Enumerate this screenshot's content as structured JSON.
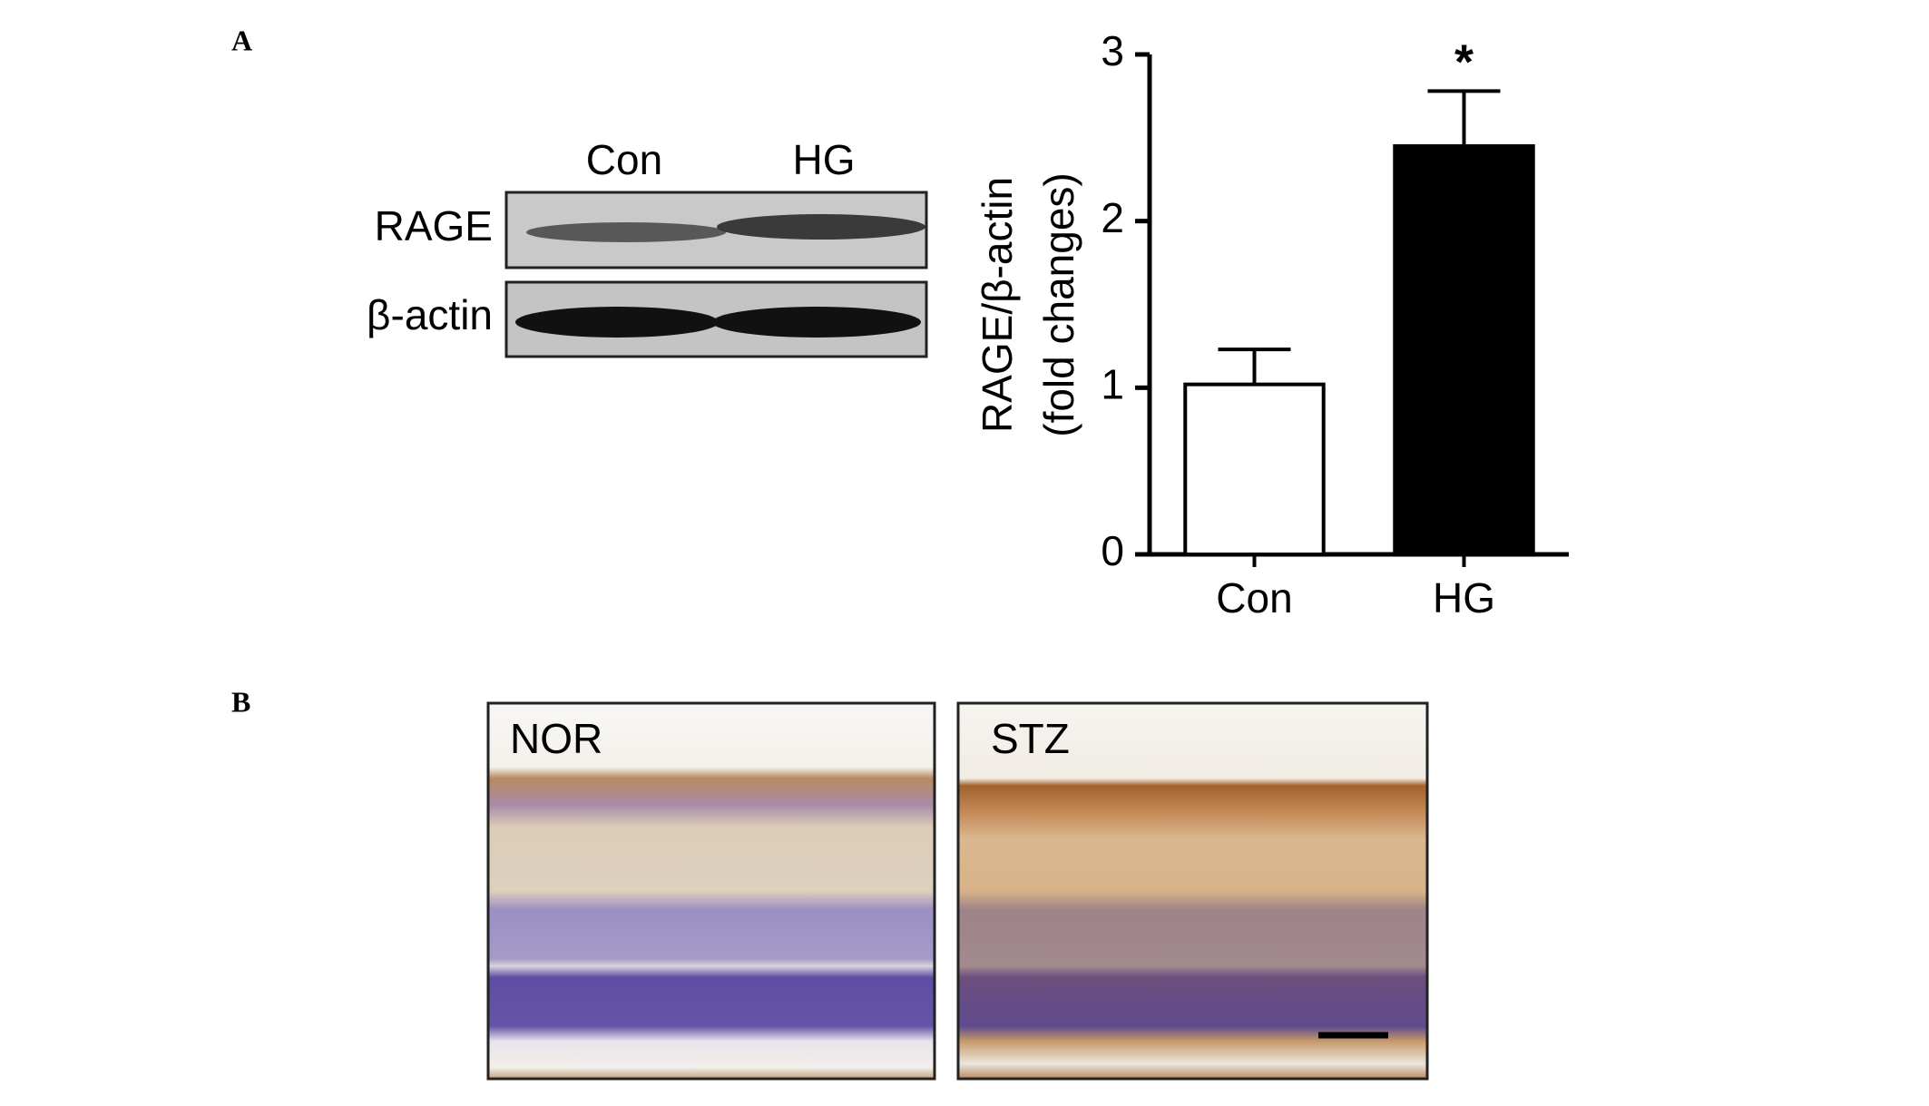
{
  "panel_labels": [
    "A",
    "B"
  ],
  "blot": {
    "lanes": [
      "Con",
      "HG"
    ],
    "rows": [
      "RAGE",
      "β-actin"
    ]
  },
  "chart_data": {
    "type": "bar",
    "ylabel": [
      "RAGE/β-actin",
      "(fold changes)"
    ],
    "categories": [
      "Con",
      "HG"
    ],
    "values": [
      1.02,
      2.45
    ],
    "errors": [
      0.21,
      0.33
    ],
    "colors": [
      "#ffffff",
      "#000000"
    ],
    "ylim": [
      0,
      3
    ],
    "yticks": [
      0,
      1,
      2,
      3
    ],
    "annotations": [
      {
        "label": "*",
        "x": "HG"
      }
    ]
  },
  "histology": {
    "panels": [
      "NOR",
      "STZ"
    ]
  }
}
